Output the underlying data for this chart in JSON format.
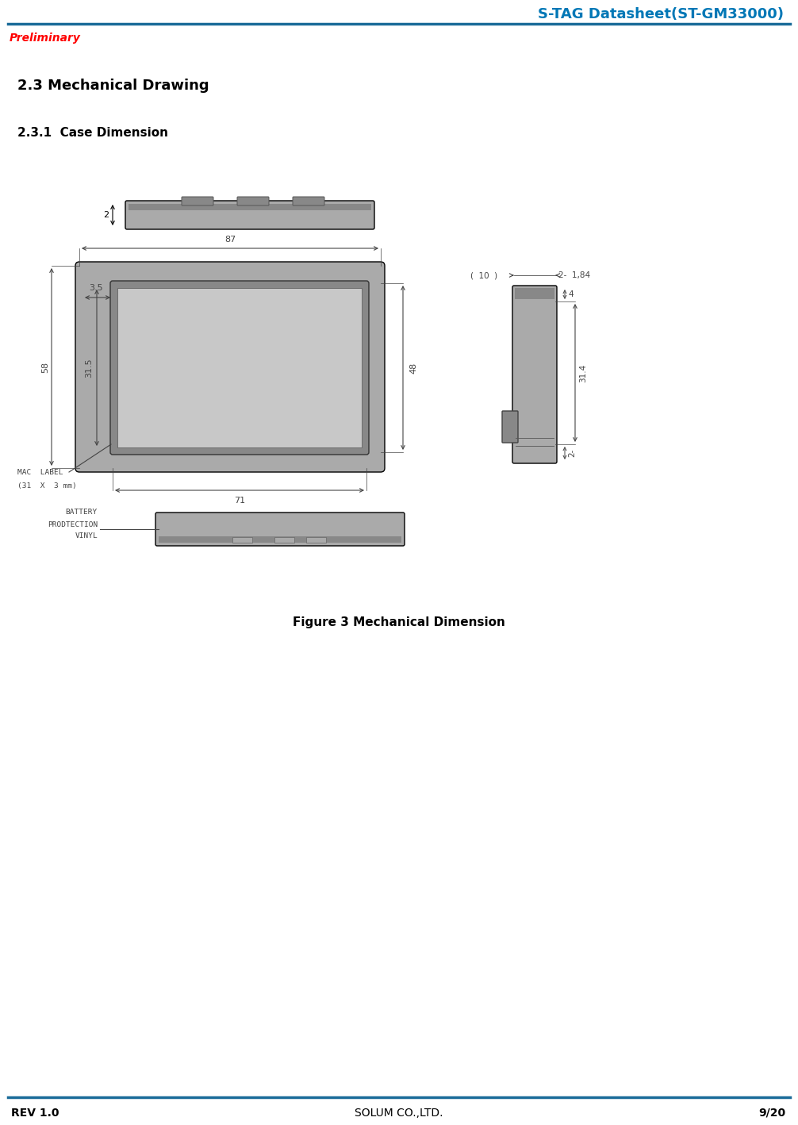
{
  "title_right": "S-TAG Datasheet(ST-GM33000)",
  "title_right_color": "#0077b6",
  "preliminary_text": "Preliminary",
  "preliminary_color": "#ff0000",
  "header_line_color": "#1a6b99",
  "footer_left": "REV 1.0",
  "footer_center": "SOLUM CO.,LTD.",
  "footer_right": "9/20",
  "footer_line_color": "#1a6b99",
  "section_title": "2.3 Mechanical Drawing",
  "subsection_title": "2.3.1  Case Dimension",
  "figure_caption": "Figure 3 Mechanical Dimension",
  "bg_color": "#ffffff",
  "drawing_color": "#000000",
  "fill_color": "#c8c8c8",
  "dark_fill": "#888888",
  "mid_fill": "#aaaaaa",
  "dim_line_color": "#444444"
}
